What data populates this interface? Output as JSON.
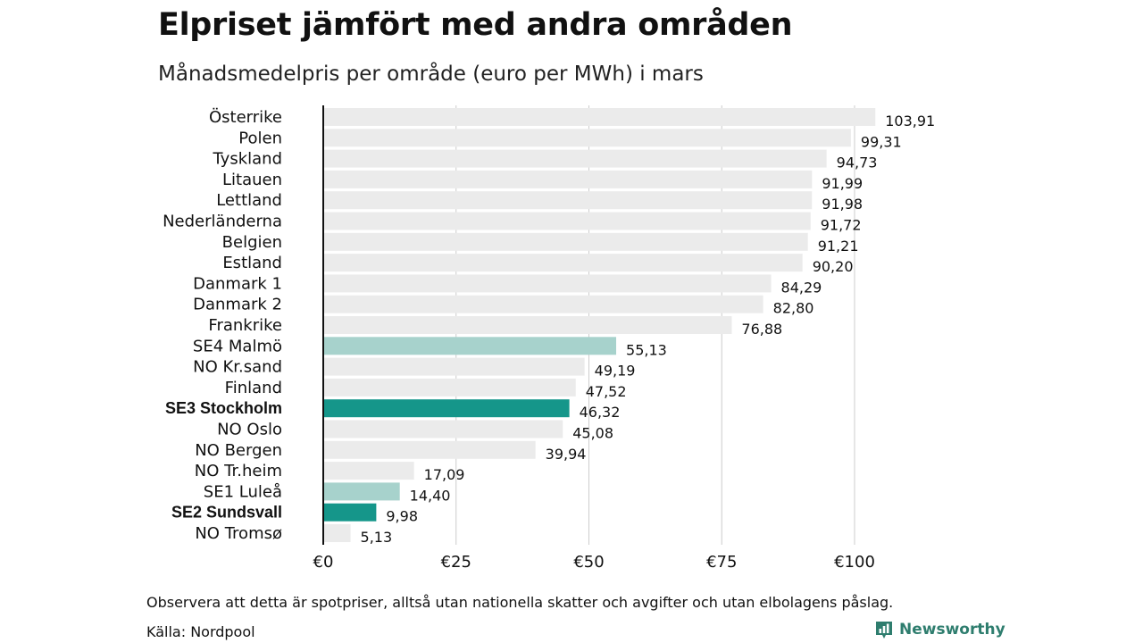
{
  "title": "Elpriset jämfört med andra områden",
  "subtitle": "Månadsmedelpris per område (euro per MWh) i mars",
  "note": "Observera att detta är spotpriser, alltså utan nationella skatter och avgifter och utan elbolagens påslag.",
  "source": "Källa: Nordpool",
  "brand": {
    "name": "Newsworthy",
    "icon": "bar-chart-logo-icon",
    "color": "#2e7d6e"
  },
  "colors": {
    "default": "#ebebeb",
    "highlight_dark": "#15968a",
    "highlight_light": "#a7d2cc",
    "grid": "#cccccc",
    "axis": "#111111"
  },
  "chart_data": {
    "type": "bar",
    "orientation": "horizontal",
    "categories": [
      "Österrike",
      "Polen",
      "Tyskland",
      "Litauen",
      "Lettland",
      "Nederländerna",
      "Belgien",
      "Estland",
      "Danmark 1",
      "Danmark 2",
      "Frankrike",
      "SE4 Malmö",
      "NO Kr.sand",
      "Finland",
      "SE3 Stockholm",
      "NO Oslo",
      "NO Bergen",
      "NO Tr.heim",
      "SE1 Luleå",
      "SE2 Sundsvall",
      "NO Tromsø"
    ],
    "values": [
      103.91,
      99.31,
      94.73,
      91.99,
      91.98,
      91.72,
      91.21,
      90.2,
      84.29,
      82.8,
      76.88,
      55.13,
      49.19,
      47.52,
      46.32,
      45.08,
      39.94,
      17.09,
      14.4,
      9.98,
      5.13
    ],
    "value_labels": [
      "103,91",
      "99,31",
      "94,73",
      "91,99",
      "91,98",
      "91,72",
      "91,21",
      "90,20",
      "84,29",
      "82,80",
      "76,88",
      "55,13",
      "49,19",
      "47,52",
      "46,32",
      "45,08",
      "39,94",
      "17,09",
      "14,40",
      "9,98",
      "5,13"
    ],
    "bar_styles": [
      "default",
      "default",
      "default",
      "default",
      "default",
      "default",
      "default",
      "default",
      "default",
      "default",
      "default",
      "highlight_light",
      "default",
      "default",
      "highlight_dark",
      "default",
      "default",
      "default",
      "highlight_light",
      "highlight_dark",
      "default"
    ],
    "bold_categories": [
      "SE3 Stockholm",
      "SE2 Sundsvall"
    ],
    "xlim": [
      0,
      105
    ],
    "xticks": [
      0,
      25,
      50,
      75,
      100
    ],
    "xtick_labels": [
      "€0",
      "€25",
      "€50",
      "€75",
      "€100"
    ],
    "grid": true
  }
}
